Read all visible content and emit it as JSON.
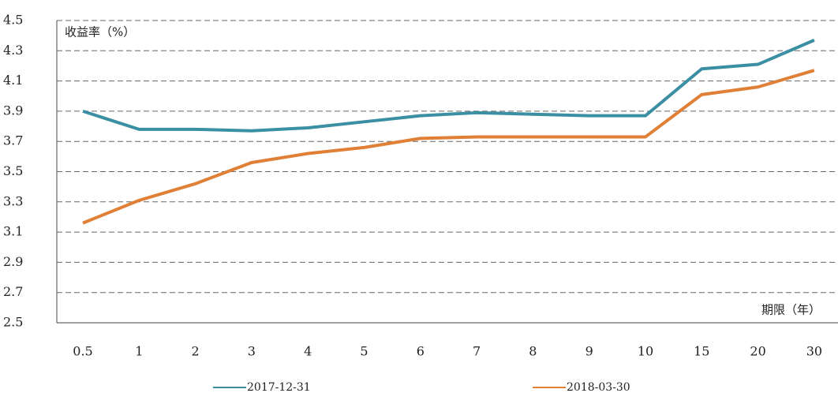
{
  "chart_data": {
    "type": "line",
    "y_label": "收益率（%）",
    "x_label": "期限（年）",
    "categories": [
      "0.5",
      "1",
      "2",
      "3",
      "4",
      "5",
      "6",
      "7",
      "8",
      "9",
      "10",
      "15",
      "20",
      "30"
    ],
    "series": [
      {
        "name": "2017-12-31",
        "color": "#3b8fa2",
        "values": [
          3.9,
          3.78,
          3.78,
          3.77,
          3.79,
          3.83,
          3.87,
          3.89,
          3.88,
          3.87,
          3.87,
          4.18,
          4.21,
          4.37
        ]
      },
      {
        "name": "2018-03-30",
        "color": "#e07f36",
        "values": [
          3.16,
          3.31,
          3.42,
          3.56,
          3.62,
          3.66,
          3.72,
          3.73,
          3.73,
          3.73,
          3.73,
          4.01,
          4.06,
          4.17
        ]
      }
    ],
    "ylim": [
      2.5,
      4.5
    ],
    "yticks": [
      2.5,
      2.7,
      2.9,
      3.1,
      3.3,
      3.5,
      3.7,
      3.9,
      4.1,
      4.3,
      4.5
    ],
    "grid": true,
    "legend": "bottom"
  }
}
